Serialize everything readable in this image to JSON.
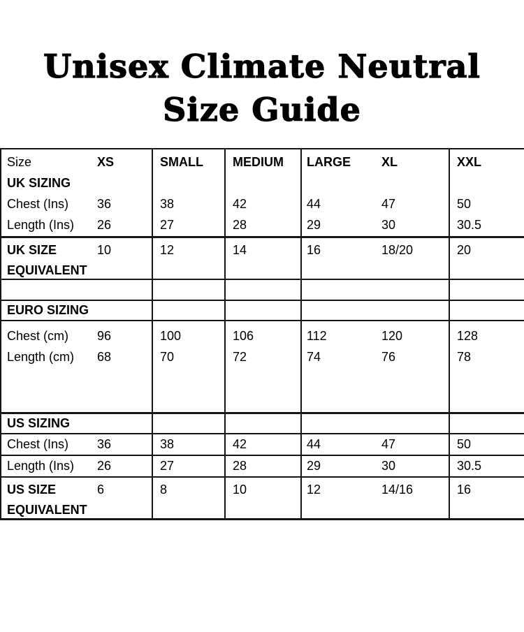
{
  "title": {
    "line1": "Unisex Climate Neutral",
    "line2": "Size Guide"
  },
  "table": {
    "size_label": "Size",
    "headers": {
      "xs": "XS",
      "small": "SMALL",
      "medium": "MEDIUM",
      "large": "LARGE",
      "xl": "XL",
      "xxl": "XXL"
    },
    "uk": {
      "section_label": "UK SIZING",
      "chest_label": "Chest (Ins)",
      "chest": [
        "36",
        "38",
        "42",
        "44",
        "47",
        "50"
      ],
      "length_label": "Length (Ins)",
      "length": [
        "26",
        "27",
        "28",
        "29",
        "30",
        "30.5"
      ],
      "equiv_label_1": "UK SIZE",
      "equiv_label_2": "EQUIVALENT",
      "equiv": [
        "10",
        "12",
        "14",
        "16",
        "18/20",
        "20"
      ]
    },
    "euro": {
      "section_label": "EURO SIZING",
      "chest_label": "Chest (cm)",
      "chest": [
        "96",
        "100",
        "106",
        "112",
        "120",
        "128"
      ],
      "length_label": "Length (cm)",
      "length": [
        "68",
        "70",
        "72",
        "74",
        "76",
        "78"
      ]
    },
    "us": {
      "section_label": "US SIZING",
      "chest_label": "Chest (Ins)",
      "chest": [
        "36",
        "38",
        "42",
        "44",
        "47",
        "50"
      ],
      "length_label": "Length (Ins)",
      "length": [
        "26",
        "27",
        "28",
        "29",
        "30",
        "30.5"
      ],
      "equiv_label_1": "US SIZE",
      "equiv_label_2": "EQUIVALENT",
      "equiv": [
        "6",
        "8",
        "10",
        "12",
        "14/16",
        "16"
      ]
    }
  },
  "colors": {
    "text": "#000000",
    "border": "#161616",
    "background": "#ffffff"
  }
}
